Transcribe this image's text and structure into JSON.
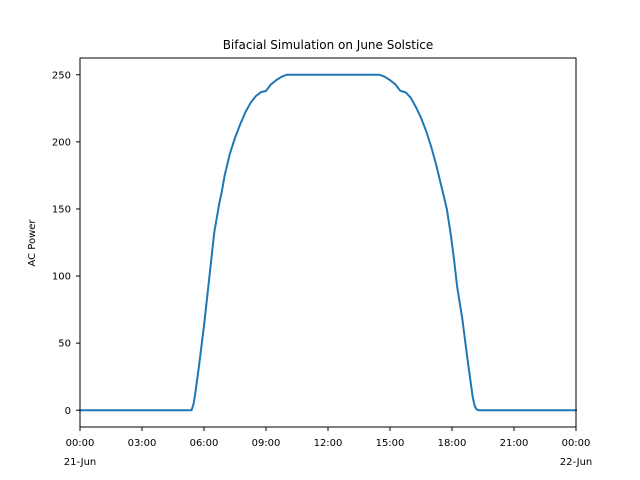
{
  "chart_data": {
    "type": "line",
    "title": "Bifacial Simulation on June Solstice",
    "xlabel": "",
    "ylabel": "AC Power",
    "xlim": [
      0,
      24
    ],
    "ylim": [
      -12.5,
      262.5
    ],
    "grid": false,
    "x_ticks": [
      {
        "value": 0,
        "label": "00:00",
        "sublabel": "21-Jun"
      },
      {
        "value": 3,
        "label": "03:00"
      },
      {
        "value": 6,
        "label": "06:00"
      },
      {
        "value": 9,
        "label": "09:00"
      },
      {
        "value": 12,
        "label": "12:00"
      },
      {
        "value": 15,
        "label": "15:00"
      },
      {
        "value": 18,
        "label": "18:00"
      },
      {
        "value": 21,
        "label": "21:00"
      },
      {
        "value": 24,
        "label": "00:00",
        "sublabel": "22-Jun"
      }
    ],
    "y_ticks": [
      0,
      50,
      100,
      150,
      200,
      250
    ],
    "series": [
      {
        "color": "#1f77b4",
        "x": [
          0,
          5.4,
          5.5,
          5.6,
          5.75,
          6.0,
          6.25,
          6.5,
          6.75,
          6.85,
          7.0,
          7.25,
          7.5,
          7.75,
          8.0,
          8.25,
          8.5,
          8.75,
          9.0,
          9.25,
          9.5,
          9.75,
          10.0,
          10.25,
          12.0,
          14.5,
          14.75,
          15.0,
          15.25,
          15.5,
          15.75,
          16.0,
          16.25,
          16.5,
          16.75,
          17.0,
          17.25,
          17.5,
          17.75,
          17.95,
          18.1,
          18.25,
          18.5,
          18.75,
          19.0,
          19.1,
          19.2,
          19.3,
          24
        ],
        "y": [
          0,
          0,
          5,
          15,
          32,
          63,
          98,
          133,
          155,
          162,
          175,
          191,
          203,
          213,
          222,
          229,
          234,
          237,
          238,
          243,
          246,
          248.5,
          250,
          250,
          250,
          250,
          248.5,
          246,
          243,
          238,
          237,
          233,
          226,
          218,
          208,
          196,
          182,
          166,
          150,
          130,
          112,
          92,
          68,
          38,
          10,
          3,
          0.5,
          0,
          0
        ]
      }
    ]
  }
}
